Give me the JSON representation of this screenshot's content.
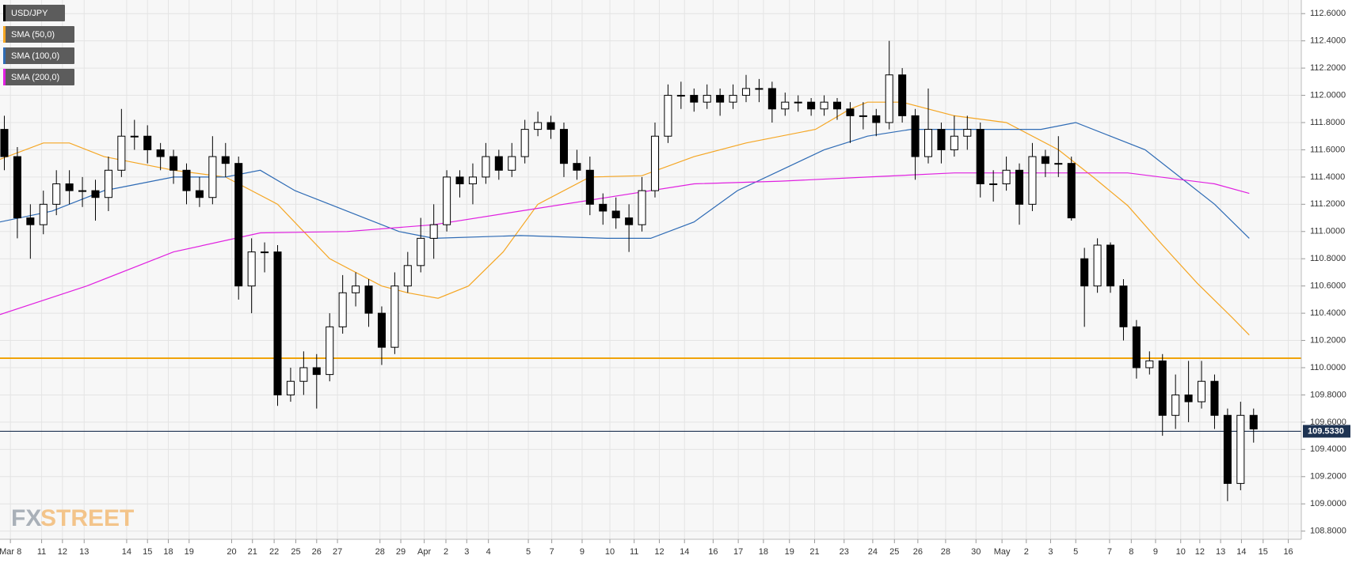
{
  "chart_data": {
    "type": "candlestick",
    "name": "USD/JPY",
    "color": "#000000",
    "watermark": [
      "FX",
      "STREET"
    ],
    "xlim": [
      0,
      300
    ],
    "ylim": [
      108.74,
      112.7
    ],
    "grid": true,
    "legend": "top-left",
    "yticks": [
      {
        "value": 108.8,
        "label": "108.8000"
      },
      {
        "value": 109.0,
        "label": "109.0000"
      },
      {
        "value": 109.2,
        "label": "109.2000"
      },
      {
        "value": 109.4,
        "label": "109.4000"
      },
      {
        "value": 109.6,
        "label": "109.6000"
      },
      {
        "value": 109.8,
        "label": "109.8000"
      },
      {
        "value": 110.0,
        "label": "110.0000"
      },
      {
        "value": 110.2,
        "label": "110.2000"
      },
      {
        "value": 110.4,
        "label": "110.4000"
      },
      {
        "value": 110.6,
        "label": "110.6000"
      },
      {
        "value": 110.8,
        "label": "110.8000"
      },
      {
        "value": 111.0,
        "label": "111.0000"
      },
      {
        "value": 111.2,
        "label": "111.2000"
      },
      {
        "value": 111.4,
        "label": "111.4000"
      },
      {
        "value": 111.6,
        "label": "111.6000"
      },
      {
        "value": 111.8,
        "label": "111.8000"
      },
      {
        "value": 112.0,
        "label": "112.0000"
      },
      {
        "value": 112.2,
        "label": "112.2000"
      },
      {
        "value": 112.4,
        "label": "112.4000"
      },
      {
        "value": 112.6,
        "label": "112.6000"
      }
    ],
    "xticks": [
      {
        "value": 2.4,
        "label": "Mar 8"
      },
      {
        "value": 9.6,
        "label": "11"
      },
      {
        "value": 14.4,
        "label": "12"
      },
      {
        "value": 19.4,
        "label": "13"
      },
      {
        "value": 29.2,
        "label": "14"
      },
      {
        "value": 34,
        "label": "15"
      },
      {
        "value": 38.8,
        "label": "18"
      },
      {
        "value": 43.6,
        "label": "19"
      },
      {
        "value": 53.4,
        "label": "20"
      },
      {
        "value": 58.2,
        "label": "21"
      },
      {
        "value": 63.2,
        "label": "22"
      },
      {
        "value": 68.2,
        "label": "25"
      },
      {
        "value": 73,
        "label": "26"
      },
      {
        "value": 77.8,
        "label": "27"
      },
      {
        "value": 87.6,
        "label": "28"
      },
      {
        "value": 92.4,
        "label": "29"
      },
      {
        "value": 97.8,
        "label": "Apr"
      },
      {
        "value": 102.8,
        "label": "2"
      },
      {
        "value": 107.6,
        "label": "3"
      },
      {
        "value": 112.6,
        "label": "4"
      },
      {
        "value": 121.8,
        "label": "5"
      },
      {
        "value": 127.2,
        "label": "7"
      },
      {
        "value": 134.2,
        "label": "9"
      },
      {
        "value": 140.6,
        "label": "10"
      },
      {
        "value": 146.2,
        "label": "11"
      },
      {
        "value": 152,
        "label": "12"
      },
      {
        "value": 157.8,
        "label": "14"
      },
      {
        "value": 164.4,
        "label": "16"
      },
      {
        "value": 170.2,
        "label": "17"
      },
      {
        "value": 176,
        "label": "18"
      },
      {
        "value": 182,
        "label": "19"
      },
      {
        "value": 187.8,
        "label": "21"
      },
      {
        "value": 194.6,
        "label": "23"
      },
      {
        "value": 201.2,
        "label": "24"
      },
      {
        "value": 206.2,
        "label": "25"
      },
      {
        "value": 211.6,
        "label": "26"
      },
      {
        "value": 218,
        "label": "28"
      },
      {
        "value": 225,
        "label": "30"
      },
      {
        "value": 231,
        "label": "May"
      },
      {
        "value": 236.6,
        "label": "2"
      },
      {
        "value": 242.2,
        "label": "3"
      },
      {
        "value": 248,
        "label": "5"
      },
      {
        "value": 255.8,
        "label": "7"
      },
      {
        "value": 260.8,
        "label": "8"
      },
      {
        "value": 266.4,
        "label": "9"
      },
      {
        "value": 272.2,
        "label": "10"
      },
      {
        "value": 276.6,
        "label": "12"
      },
      {
        "value": 281.4,
        "label": "13"
      },
      {
        "value": 286.2,
        "label": "14"
      },
      {
        "value": 291.2,
        "label": "15"
      },
      {
        "value": 297,
        "label": "16"
      }
    ],
    "candles": {
      "x": [
        1,
        4,
        7,
        10,
        13,
        16,
        19,
        22,
        25,
        28,
        31,
        34,
        37,
        40,
        43,
        46,
        49,
        52,
        55,
        58,
        61,
        64,
        67,
        70,
        73,
        76,
        79,
        82,
        85,
        88,
        91,
        94,
        97,
        100,
        103,
        106,
        109,
        112,
        115,
        118,
        121,
        124,
        127,
        130,
        133,
        136,
        139,
        142,
        145,
        148,
        151,
        154,
        157,
        160,
        163,
        166,
        169,
        172,
        175,
        178,
        181,
        184,
        187,
        190,
        193,
        196,
        199,
        202,
        205,
        208,
        211,
        214,
        217,
        220,
        223,
        226,
        229,
        232,
        235,
        238,
        241,
        244,
        247,
        250,
        253,
        256,
        259,
        262,
        265,
        268,
        271,
        274,
        277,
        280,
        283,
        286,
        289
      ],
      "open": [
        111.75,
        111.55,
        111.1,
        111.05,
        111.2,
        111.35,
        111.3,
        111.3,
        111.25,
        111.45,
        111.7,
        111.7,
        111.6,
        111.55,
        111.45,
        111.3,
        111.25,
        111.55,
        111.5,
        110.6,
        110.85,
        110.85,
        109.8,
        109.9,
        110.0,
        109.95,
        110.3,
        110.55,
        110.6,
        110.4,
        110.15,
        110.6,
        110.75,
        110.95,
        111.05,
        111.4,
        111.35,
        111.4,
        111.55,
        111.45,
        111.55,
        111.75,
        111.8,
        111.75,
        111.5,
        111.45,
        111.2,
        111.15,
        111.1,
        111.05,
        111.3,
        111.7,
        112.0,
        112.0,
        111.95,
        112.0,
        111.95,
        112.0,
        112.05,
        112.05,
        111.9,
        111.95,
        111.95,
        111.9,
        111.95,
        111.9,
        111.85,
        111.85,
        111.8,
        112.15,
        111.85,
        111.55,
        111.75,
        111.6,
        111.7,
        111.75,
        111.35,
        111.35,
        111.45,
        111.2,
        111.55,
        111.5,
        111.5,
        110.8,
        110.6,
        110.9,
        110.6,
        110.3,
        110.0,
        110.05,
        109.65,
        109.8,
        109.75,
        109.9,
        109.65,
        109.15,
        109.65
      ],
      "high": [
        111.85,
        111.62,
        111.2,
        111.3,
        111.45,
        111.45,
        111.4,
        111.38,
        111.55,
        111.9,
        111.82,
        111.78,
        111.65,
        111.6,
        111.5,
        111.4,
        111.7,
        111.65,
        111.55,
        110.95,
        110.92,
        110.9,
        110.0,
        110.12,
        110.1,
        110.4,
        110.68,
        110.7,
        110.65,
        110.45,
        110.7,
        110.85,
        111.1,
        111.2,
        111.45,
        111.45,
        111.5,
        111.65,
        111.6,
        111.65,
        111.82,
        111.88,
        111.85,
        111.8,
        111.6,
        111.55,
        111.28,
        111.25,
        111.2,
        111.4,
        111.8,
        112.08,
        112.1,
        112.05,
        112.08,
        112.05,
        112.08,
        112.15,
        112.12,
        112.1,
        112.02,
        112.0,
        111.98,
        112.0,
        111.98,
        111.95,
        111.95,
        111.9,
        112.4,
        112.2,
        111.9,
        112.05,
        111.8,
        111.85,
        111.85,
        111.8,
        111.45,
        111.55,
        111.5,
        111.65,
        111.6,
        111.7,
        111.55,
        110.88,
        110.95,
        110.92,
        110.65,
        110.35,
        110.12,
        110.1,
        109.95,
        110.05,
        110.05,
        109.95,
        109.7,
        109.75,
        109.7
      ],
      "low": [
        111.45,
        110.95,
        110.8,
        110.98,
        111.12,
        111.2,
        111.18,
        111.08,
        111.15,
        111.4,
        111.6,
        111.5,
        111.45,
        111.35,
        111.2,
        111.18,
        111.2,
        111.4,
        110.5,
        110.4,
        110.7,
        109.72,
        109.75,
        109.8,
        109.7,
        109.9,
        110.25,
        110.45,
        110.3,
        110.02,
        110.1,
        110.55,
        110.7,
        110.8,
        111.0,
        111.25,
        111.2,
        111.35,
        111.38,
        111.4,
        111.5,
        111.7,
        111.68,
        111.4,
        111.38,
        111.12,
        111.05,
        111.02,
        110.85,
        111.0,
        111.25,
        111.65,
        111.9,
        111.88,
        111.9,
        111.85,
        111.9,
        111.95,
        111.95,
        111.8,
        111.85,
        111.88,
        111.85,
        111.85,
        111.82,
        111.65,
        111.75,
        111.7,
        111.75,
        111.8,
        111.38,
        111.5,
        111.5,
        111.55,
        111.6,
        111.25,
        111.22,
        111.3,
        111.05,
        111.15,
        111.4,
        111.4,
        111.08,
        110.3,
        110.55,
        110.55,
        110.2,
        109.92,
        109.95,
        109.5,
        109.55,
        109.6,
        109.7,
        109.55,
        109.02,
        109.1,
        109.45
      ],
      "close": [
        111.55,
        111.1,
        111.05,
        111.2,
        111.35,
        111.3,
        111.3,
        111.25,
        111.45,
        111.7,
        111.7,
        111.6,
        111.55,
        111.45,
        111.3,
        111.25,
        111.55,
        111.5,
        110.6,
        110.85,
        110.85,
        109.8,
        109.9,
        110.0,
        109.95,
        110.3,
        110.55,
        110.6,
        110.4,
        110.15,
        110.6,
        110.75,
        110.95,
        111.05,
        111.4,
        111.35,
        111.4,
        111.55,
        111.45,
        111.55,
        111.75,
        111.8,
        111.75,
        111.5,
        111.45,
        111.2,
        111.15,
        111.1,
        111.05,
        111.3,
        111.7,
        112.0,
        112.0,
        111.95,
        112.0,
        111.95,
        112.0,
        112.05,
        112.05,
        111.9,
        111.95,
        111.95,
        111.9,
        111.95,
        111.9,
        111.85,
        111.85,
        111.8,
        112.15,
        111.85,
        111.55,
        111.75,
        111.6,
        111.7,
        111.75,
        111.35,
        111.35,
        111.45,
        111.2,
        111.55,
        111.5,
        111.5,
        111.1,
        110.6,
        110.9,
        110.6,
        110.3,
        110.0,
        110.05,
        109.65,
        109.8,
        109.75,
        109.9,
        109.65,
        109.15,
        109.65,
        109.55
      ]
    },
    "series": [
      {
        "name": "SMA (50,0)",
        "color": "#f5a623",
        "x": [
          0,
          10,
          16,
          24,
          40,
          52,
          64,
          76,
          88,
          94,
          101,
          108,
          116,
          124,
          136,
          148,
          160,
          172,
          188,
          196,
          200,
          208,
          220,
          232,
          244,
          252,
          260,
          268,
          276,
          284,
          288
        ],
        "values": [
          111.53,
          111.65,
          111.65,
          111.55,
          111.45,
          111.4,
          111.2,
          110.8,
          110.6,
          110.55,
          110.51,
          110.6,
          110.85,
          111.2,
          111.4,
          111.41,
          111.55,
          111.65,
          111.75,
          111.9,
          111.95,
          111.95,
          111.85,
          111.8,
          111.6,
          111.4,
          111.19,
          110.9,
          110.62,
          110.37,
          110.24
        ]
      },
      {
        "name": "SMA (100,0)",
        "color": "#2e6bb5",
        "x": [
          0,
          12,
          24,
          40,
          52,
          60,
          68,
          76,
          84,
          92,
          100,
          120,
          140,
          150,
          160,
          170,
          180,
          190,
          200,
          210,
          220,
          230,
          240,
          248,
          256,
          264,
          272,
          280,
          288
        ],
        "values": [
          111.07,
          111.15,
          111.3,
          111.4,
          111.4,
          111.45,
          111.3,
          111.2,
          111.1,
          111.0,
          110.95,
          110.97,
          110.95,
          110.95,
          111.07,
          111.3,
          111.45,
          111.6,
          111.7,
          111.75,
          111.75,
          111.75,
          111.75,
          111.8,
          111.7,
          111.6,
          111.4,
          111.2,
          110.95
        ]
      },
      {
        "name": "SMA (200,0)",
        "color": "#e020e0",
        "x": [
          0,
          20,
          40,
          60,
          80,
          100,
          120,
          140,
          160,
          180,
          200,
          220,
          240,
          260,
          280,
          288
        ],
        "values": [
          110.39,
          110.6,
          110.85,
          110.99,
          111.0,
          111.05,
          111.15,
          111.25,
          111.35,
          111.37,
          111.4,
          111.43,
          111.43,
          111.43,
          111.35,
          111.28
        ]
      }
    ],
    "hlines": [
      {
        "value": 110.07,
        "color": "#f0a30a"
      }
    ],
    "current_price": {
      "value": 109.533,
      "label": "109.5330",
      "color": "#1e3352"
    }
  }
}
